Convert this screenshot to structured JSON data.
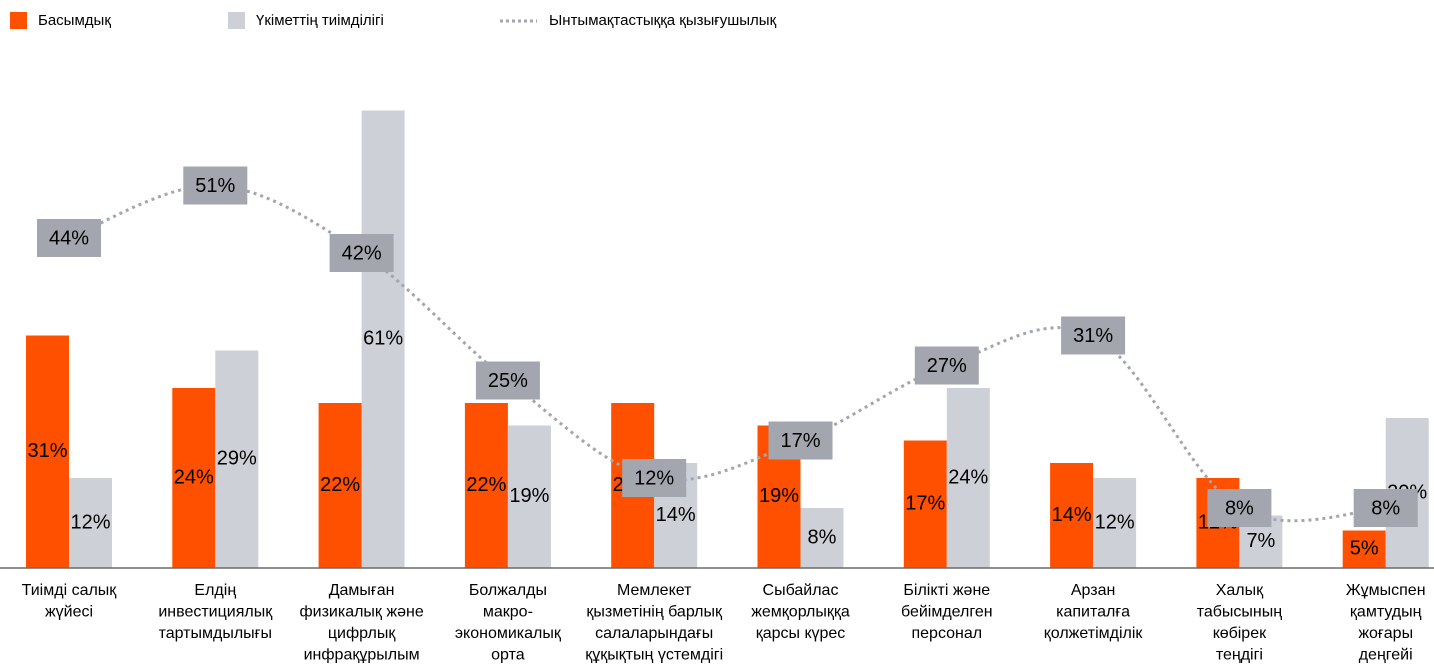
{
  "chart_data": {
    "type": "bar",
    "categories": [
      [
        "Тиімді салық",
        "жүйесі"
      ],
      [
        "Елдің",
        "инвестициялық",
        "тартымдылығы"
      ],
      [
        "Дамыған",
        "физикалық және",
        "цифрлық",
        "инфрақұрылым"
      ],
      [
        "Болжалды",
        "макро-",
        "экономикалық",
        "орта"
      ],
      [
        "Мемлекет",
        "қызметінің барлық",
        "салаларындағы",
        "құқықтың үстемдігі"
      ],
      [
        "Сыбайлас",
        "жемқорлыққа",
        "қарсы күрес"
      ],
      [
        "Білікті және",
        "бейімделген",
        "персонал"
      ],
      [
        "Арзан",
        "капиталға",
        "қолжетімділік"
      ],
      [
        "Халық",
        "табысының",
        "көбірек",
        "теңдігі"
      ],
      [
        "Жұмыспен",
        "қамтудың",
        "жоғары",
        "деңгейі"
      ]
    ],
    "series": [
      {
        "name": "Басымдық",
        "color": "#ff5000",
        "type": "bar",
        "values": [
          31,
          24,
          22,
          22,
          22,
          19,
          17,
          14,
          12,
          5
        ],
        "value_labels": [
          "31%",
          "24%",
          "22%",
          "22%",
          "22%",
          "19%",
          "17%",
          "14%",
          "12%",
          "5%"
        ]
      },
      {
        "name": "Үкіметтің тиімділігі",
        "color": "#cdd0d6",
        "type": "bar",
        "values": [
          12,
          29,
          61,
          19,
          14,
          8,
          24,
          12,
          7,
          20
        ],
        "value_labels": [
          "12%",
          "29%",
          "61%",
          "19%",
          "14%",
          "8%",
          "24%",
          "12%",
          "7%",
          "20%"
        ]
      },
      {
        "name": "Ынтымақтастыққа қызығушылық",
        "color": "#a3a6ae",
        "type": "line",
        "values": [
          44,
          51,
          42,
          25,
          12,
          17,
          27,
          31,
          8,
          8
        ],
        "value_labels": [
          "44%",
          "51%",
          "42%",
          "25%",
          "12%",
          "17%",
          "27%",
          "31%",
          "8%",
          "8%"
        ]
      }
    ],
    "ylim": [
      0,
      62
    ],
    "legend": "top-left"
  }
}
